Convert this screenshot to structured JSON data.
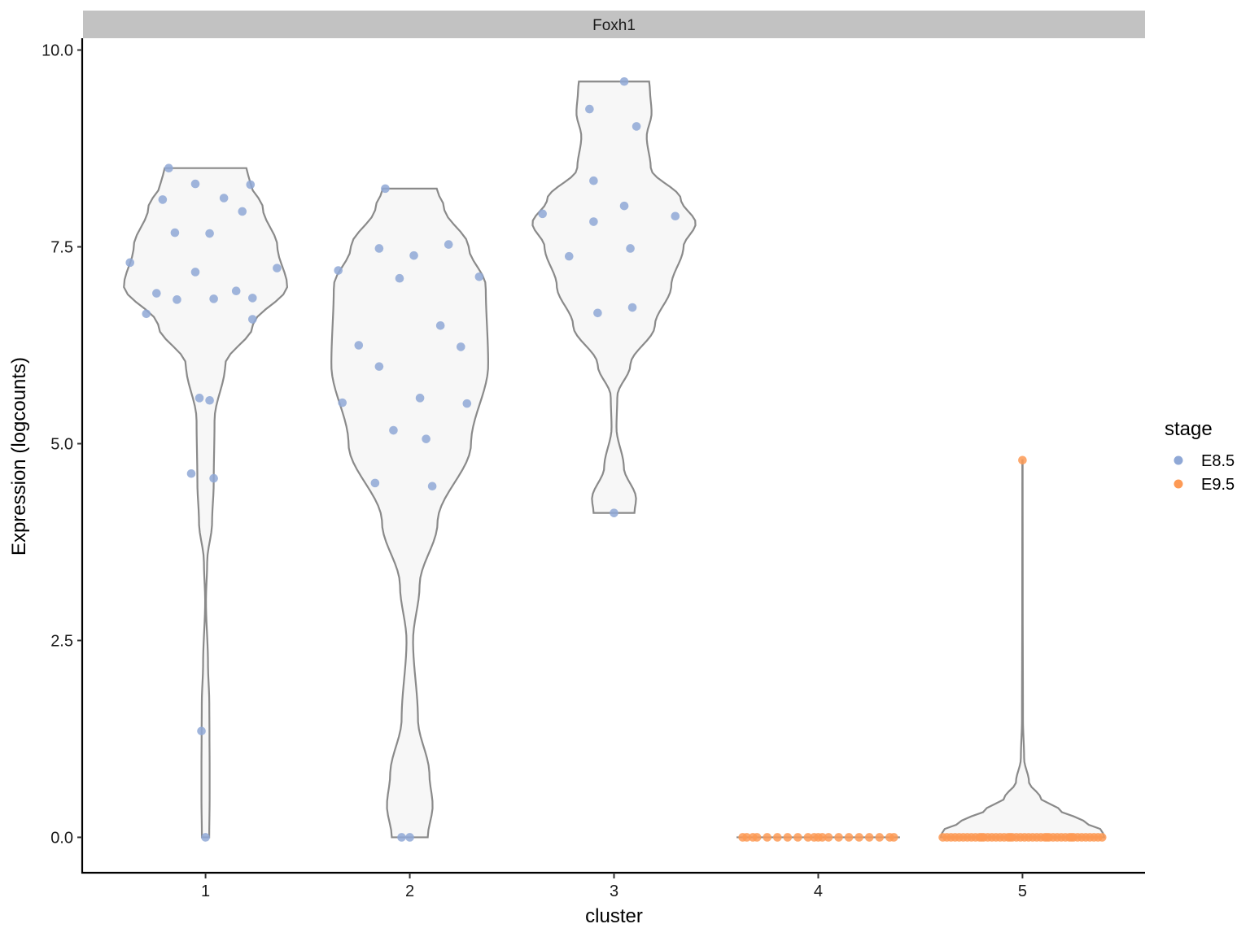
{
  "chart_data": {
    "type": "violin",
    "facet_title": "Foxh1",
    "xlabel": "cluster",
    "ylabel": "Expression (logcounts)",
    "categories": [
      "1",
      "2",
      "3",
      "4",
      "5"
    ],
    "ylim": [
      -0.45,
      10.15
    ],
    "yticks": [
      0.0,
      2.5,
      5.0,
      7.5,
      10.0
    ],
    "ytick_labels": [
      "0.0",
      "2.5",
      "5.0",
      "7.5",
      "10.0"
    ],
    "grid": false,
    "legend": {
      "title": "stage",
      "position": "right",
      "entries": [
        {
          "label": "E8.5",
          "color": "#8fa8d6"
        },
        {
          "label": "E9.5",
          "color": "#fd9a55"
        }
      ]
    },
    "violin_style": {
      "fill": "#f7f7f7",
      "stroke": "#8a8a8a"
    },
    "violins": [
      {
        "cluster": "1",
        "range": [
          0,
          8.5
        ],
        "profile": [
          [
            0,
            0.045
          ],
          [
            0.5,
            0.05
          ],
          [
            0.9,
            0.05
          ],
          [
            1.3,
            0.048
          ],
          [
            1.7,
            0.046
          ],
          [
            2.2,
            0.03
          ],
          [
            3.0,
            0.005
          ],
          [
            3.5,
            0.02
          ],
          [
            4.0,
            0.08
          ],
          [
            4.5,
            0.1
          ],
          [
            5.3,
            0.11
          ],
          [
            6.0,
            0.24
          ],
          [
            6.5,
            0.58
          ],
          [
            7.0,
            1.0
          ],
          [
            7.5,
            0.88
          ],
          [
            8.0,
            0.7
          ],
          [
            8.3,
            0.55
          ],
          [
            8.5,
            0.5
          ]
        ]
      },
      {
        "cluster": "2",
        "range": [
          0,
          8.24
        ],
        "profile": [
          [
            0,
            0.22
          ],
          [
            0.4,
            0.28
          ],
          [
            0.8,
            0.24
          ],
          [
            1.5,
            0.1
          ],
          [
            2.5,
            0.04
          ],
          [
            3.2,
            0.12
          ],
          [
            4.0,
            0.34
          ],
          [
            5.0,
            0.75
          ],
          [
            6.0,
            0.96
          ],
          [
            7.0,
            0.93
          ],
          [
            7.5,
            0.72
          ],
          [
            8.0,
            0.42
          ],
          [
            8.24,
            0.33
          ]
        ]
      },
      {
        "cluster": "3",
        "range": [
          4.12,
          9.6
        ],
        "profile": [
          [
            4.12,
            0.25
          ],
          [
            4.3,
            0.27
          ],
          [
            4.7,
            0.12
          ],
          [
            5.2,
            0.03
          ],
          [
            5.6,
            0.04
          ],
          [
            6.0,
            0.2
          ],
          [
            6.5,
            0.5
          ],
          [
            7.0,
            0.7
          ],
          [
            7.5,
            0.85
          ],
          [
            7.8,
            1.0
          ],
          [
            8.1,
            0.82
          ],
          [
            8.5,
            0.45
          ],
          [
            8.9,
            0.4
          ],
          [
            9.2,
            0.46
          ],
          [
            9.5,
            0.44
          ],
          [
            9.6,
            0.43
          ]
        ]
      },
      {
        "cluster": "4",
        "range": [
          0,
          0
        ],
        "profile": [
          [
            0,
            1.0
          ]
        ]
      },
      {
        "cluster": "5",
        "range": [
          0,
          4.79
        ],
        "profile": [
          [
            0,
            1.0
          ],
          [
            0.08,
            0.98
          ],
          [
            0.2,
            0.75
          ],
          [
            0.35,
            0.45
          ],
          [
            0.5,
            0.22
          ],
          [
            0.7,
            0.08
          ],
          [
            1.0,
            0.02
          ],
          [
            1.5,
            0.006
          ],
          [
            3.0,
            0.003
          ],
          [
            4.79,
            0.002
          ]
        ]
      }
    ],
    "series": [
      {
        "name": "E8.5",
        "color": "#8fa8d6",
        "points": [
          [
            1,
            8.5
          ],
          [
            1,
            8.3
          ],
          [
            1,
            8.1
          ],
          [
            1,
            8.29
          ],
          [
            1,
            8.12
          ],
          [
            1,
            7.95
          ],
          [
            1,
            7.68
          ],
          [
            1,
            7.67
          ],
          [
            1,
            7.3
          ],
          [
            1,
            7.18
          ],
          [
            1,
            7.23
          ],
          [
            1,
            6.91
          ],
          [
            1,
            6.83
          ],
          [
            1,
            6.84
          ],
          [
            1,
            6.85
          ],
          [
            1,
            6.94
          ],
          [
            1,
            6.65
          ],
          [
            1,
            6.58
          ],
          [
            1,
            5.58
          ],
          [
            1,
            5.55
          ],
          [
            1,
            4.62
          ],
          [
            1,
            4.56
          ],
          [
            1,
            1.35
          ],
          [
            1,
            0.0
          ],
          [
            2,
            8.24
          ],
          [
            2,
            7.48
          ],
          [
            2,
            7.39
          ],
          [
            2,
            7.53
          ],
          [
            2,
            7.2
          ],
          [
            2,
            7.1
          ],
          [
            2,
            7.12
          ],
          [
            2,
            6.5
          ],
          [
            2,
            6.25
          ],
          [
            2,
            6.23
          ],
          [
            2,
            5.98
          ],
          [
            2,
            5.58
          ],
          [
            2,
            5.52
          ],
          [
            2,
            5.51
          ],
          [
            2,
            5.17
          ],
          [
            2,
            5.06
          ],
          [
            2,
            4.5
          ],
          [
            2,
            4.46
          ],
          [
            2,
            0.0
          ],
          [
            2,
            0.0
          ],
          [
            3,
            9.6
          ],
          [
            3,
            9.25
          ],
          [
            3,
            9.03
          ],
          [
            3,
            8.34
          ],
          [
            3,
            8.02
          ],
          [
            3,
            7.92
          ],
          [
            3,
            7.89
          ],
          [
            3,
            7.82
          ],
          [
            3,
            7.48
          ],
          [
            3,
            7.38
          ],
          [
            3,
            6.73
          ],
          [
            3,
            6.66
          ],
          [
            3,
            4.12
          ]
        ],
        "jitter_offsets": [
          -0.18,
          -0.05,
          -0.21,
          0.22,
          0.09,
          0.18,
          -0.15,
          0.02,
          -0.37,
          -0.05,
          0.35,
          -0.24,
          -0.14,
          0.04,
          0.23,
          0.15,
          -0.29,
          0.23,
          -0.03,
          0.02,
          -0.07,
          0.04,
          -0.02,
          0.0,
          -0.12,
          -0.15,
          0.02,
          0.19,
          -0.35,
          -0.05,
          0.34,
          0.15,
          -0.25,
          0.25,
          -0.15,
          0.05,
          -0.33,
          0.28,
          -0.08,
          0.08,
          -0.17,
          0.11,
          -0.04,
          0.0,
          0.05,
          -0.12,
          0.11,
          -0.1,
          0.05,
          -0.35,
          0.3,
          -0.1,
          0.08,
          -0.22,
          0.09,
          -0.08,
          0.0
        ]
      },
      {
        "name": "E9.5",
        "color": "#fd9a55",
        "points": [
          [
            4,
            0.0
          ],
          [
            4,
            0.0
          ],
          [
            4,
            0.0
          ],
          [
            4,
            0.0
          ],
          [
            4,
            0.0
          ],
          [
            4,
            0.0
          ],
          [
            4,
            0.0
          ],
          [
            4,
            0.0
          ],
          [
            4,
            0.0
          ],
          [
            4,
            0.0
          ],
          [
            4,
            0.0
          ],
          [
            4,
            0.0
          ],
          [
            4,
            0.0
          ],
          [
            4,
            0.0
          ],
          [
            4,
            0.0
          ],
          [
            4,
            0.0
          ],
          [
            4,
            0.0
          ],
          [
            4,
            0.0
          ],
          [
            4,
            0.0
          ],
          [
            4,
            0.0
          ],
          [
            5,
            4.79
          ],
          [
            5,
            0.0
          ],
          [
            5,
            0.0
          ],
          [
            5,
            0.0
          ],
          [
            5,
            0.0
          ],
          [
            5,
            0.0
          ],
          [
            5,
            0.0
          ],
          [
            5,
            0.0
          ],
          [
            5,
            0.0
          ],
          [
            5,
            0.0
          ],
          [
            5,
            0.0
          ],
          [
            5,
            0.0
          ],
          [
            5,
            0.0
          ],
          [
            5,
            0.0
          ],
          [
            5,
            0.0
          ],
          [
            5,
            0.0
          ],
          [
            5,
            0.0
          ],
          [
            5,
            0.0
          ],
          [
            5,
            0.0
          ],
          [
            5,
            0.0
          ],
          [
            5,
            0.0
          ],
          [
            5,
            0.0
          ],
          [
            5,
            0.0
          ],
          [
            5,
            0.0
          ],
          [
            5,
            0.0
          ],
          [
            5,
            0.0
          ],
          [
            5,
            0.0
          ],
          [
            5,
            0.0
          ],
          [
            5,
            0.0
          ],
          [
            5,
            0.0
          ],
          [
            5,
            0.0
          ],
          [
            5,
            0.0
          ],
          [
            5,
            0.0
          ],
          [
            5,
            0.0
          ],
          [
            5,
            0.0
          ],
          [
            5,
            0.0
          ],
          [
            5,
            0.0
          ],
          [
            5,
            0.0
          ],
          [
            5,
            0.0
          ],
          [
            5,
            0.0
          ],
          [
            5,
            0.0
          ],
          [
            5,
            0.0
          ],
          [
            5,
            0.0
          ],
          [
            5,
            0.0
          ],
          [
            5,
            0.0
          ]
        ],
        "jitter_offsets": [
          -0.37,
          -0.35,
          -0.3,
          -0.25,
          -0.2,
          -0.15,
          -0.1,
          -0.05,
          -0.02,
          0.0,
          0.02,
          0.05,
          0.1,
          0.15,
          0.2,
          0.25,
          0.3,
          0.35,
          -0.32,
          0.37,
          0.0,
          -0.39,
          -0.37,
          -0.35,
          -0.33,
          -0.31,
          -0.29,
          -0.27,
          -0.25,
          -0.23,
          -0.21,
          -0.19,
          -0.17,
          -0.15,
          -0.13,
          -0.11,
          -0.09,
          -0.07,
          -0.05,
          -0.03,
          -0.01,
          0.01,
          0.03,
          0.05,
          0.07,
          0.09,
          0.11,
          0.13,
          0.15,
          0.17,
          0.19,
          0.21,
          0.23,
          0.25,
          0.27,
          0.29,
          0.31,
          0.33,
          0.35,
          0.37,
          0.39,
          -0.2,
          0.12,
          -0.06,
          0.24
        ]
      }
    ]
  }
}
